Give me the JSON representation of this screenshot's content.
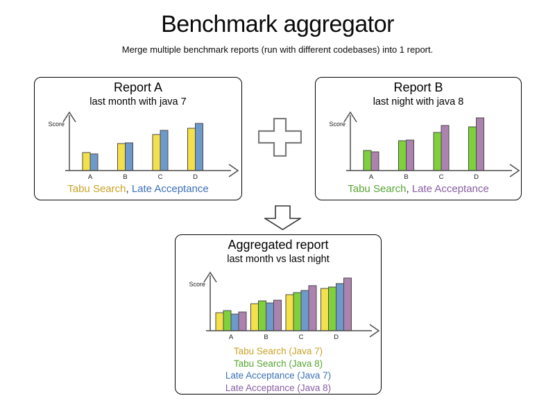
{
  "header": {
    "title": "Benchmark aggregator",
    "subtitle": "Merge multiple benchmark reports (run with different codebases) into 1 report."
  },
  "style": {
    "axis_color": "#4a4a4a",
    "bar_stroke": "#4a4a4a",
    "box_border": "#000000",
    "plus_outline": "#7a7a7a",
    "arrow_outline": "#333333"
  },
  "legends": {
    "separator": ", ",
    "report_a": [
      {
        "label": "Tabu Search",
        "color": "#C9A227"
      },
      {
        "label": "Late Acceptance",
        "color": "#3B6FB6"
      }
    ],
    "report_b": [
      {
        "label": "Tabu Search",
        "color": "#56A632"
      },
      {
        "label": "Late Acceptance",
        "color": "#875CA3"
      }
    ],
    "aggregated": [
      {
        "label": "Tabu Search (Java 7)",
        "color": "#C9A227"
      },
      {
        "label": "Tabu Search (Java 8)",
        "color": "#56A632"
      },
      {
        "label": "Late Acceptance (Java 7)",
        "color": "#3B6FB6"
      },
      {
        "label": "Late Acceptance (Java 8)",
        "color": "#875CA3"
      }
    ]
  },
  "chart_data": [
    {
      "id": "report-a",
      "type": "bar",
      "title": "Report A",
      "subtitle": "last month with java 7",
      "ylabel": "Score",
      "xlabel": "",
      "categories": [
        "A",
        "B",
        "C",
        "D"
      ],
      "ylim": [
        0,
        80
      ],
      "grid": false,
      "legend_position": "bottom",
      "series": [
        {
          "name": "Tabu Search",
          "color": "#F4E04B",
          "values": [
            26,
            39,
            52,
            61
          ]
        },
        {
          "name": "Late Acceptance",
          "color": "#6E99CB",
          "values": [
            24,
            40,
            58,
            68
          ]
        }
      ]
    },
    {
      "id": "report-b",
      "type": "bar",
      "title": "Report B",
      "subtitle": "last night with java 8",
      "ylabel": "Score",
      "xlabel": "",
      "categories": [
        "A",
        "B",
        "C",
        "D"
      ],
      "ylim": [
        0,
        80
      ],
      "grid": false,
      "legend_position": "bottom",
      "series": [
        {
          "name": "Tabu Search",
          "color": "#7ED13B",
          "values": [
            29,
            43,
            55,
            63
          ]
        },
        {
          "name": "Late Acceptance",
          "color": "#AC82AE",
          "values": [
            27,
            44,
            65,
            76
          ]
        }
      ]
    },
    {
      "id": "aggregated",
      "type": "bar",
      "title": "Aggregated report",
      "subtitle": "last month vs last night",
      "ylabel": "Score",
      "xlabel": "",
      "categories": [
        "A",
        "B",
        "C",
        "D"
      ],
      "ylim": [
        0,
        80
      ],
      "grid": false,
      "legend_position": "bottom",
      "series": [
        {
          "name": "Tabu Search (Java 7)",
          "color": "#F4E04B",
          "values": [
            26,
            39,
            52,
            61
          ]
        },
        {
          "name": "Tabu Search (Java 8)",
          "color": "#7ED13B",
          "values": [
            29,
            43,
            55,
            63
          ]
        },
        {
          "name": "Late Acceptance (Java 7)",
          "color": "#6E99CB",
          "values": [
            24,
            40,
            58,
            68
          ]
        },
        {
          "name": "Late Acceptance (Java 8)",
          "color": "#AC82AE",
          "values": [
            27,
            44,
            65,
            76
          ]
        }
      ]
    }
  ]
}
